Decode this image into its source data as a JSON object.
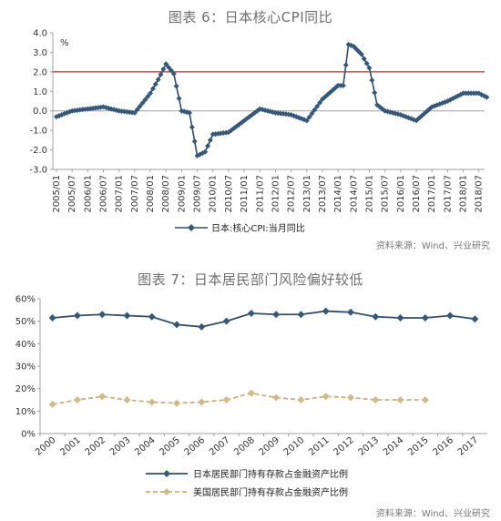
{
  "chart1": {
    "title": "图表 6：日本核心CPI同比",
    "unit": "%",
    "source": "资料来源：Wind、兴业研究",
    "chart_data": {
      "type": "line",
      "title": "图表 6：日本核心CPI同比",
      "ylabel": "%",
      "ylim": [
        -3.0,
        4.0
      ],
      "yticks": [
        "4.0",
        "3.0",
        "2.0",
        "1.0",
        "0.0",
        "-1.0",
        "-2.0",
        "-3.0"
      ],
      "xticks": [
        "2005/01",
        "2005/07",
        "2006/01",
        "2006/07",
        "2007/01",
        "2007/07",
        "2008/01",
        "2008/07",
        "2009/01",
        "2009/07",
        "2010/01",
        "2010/07",
        "2011/01",
        "2011/07",
        "2012/01",
        "2012/07",
        "2013/01",
        "2013/07",
        "2014/01",
        "2014/07",
        "2015/01",
        "2015/07",
        "2016/01",
        "2016/07",
        "2017/01",
        "2017/07",
        "2018/01",
        "2018/07"
      ],
      "reference_line": 2.0,
      "legend_position": "bottom",
      "series": [
        {
          "name": "日本:核心CPI:当月同比",
          "x": [
            "2005/01",
            "2005/07",
            "2006/01",
            "2006/07",
            "2007/01",
            "2007/07",
            "2008/01",
            "2008/04",
            "2008/07",
            "2008/10",
            "2009/01",
            "2009/04",
            "2009/07",
            "2009/10",
            "2010/01",
            "2010/07",
            "2011/01",
            "2011/07",
            "2012/01",
            "2012/07",
            "2013/01",
            "2013/07",
            "2014/01",
            "2014/03",
            "2014/05",
            "2014/07",
            "2014/10",
            "2015/01",
            "2015/04",
            "2015/07",
            "2016/01",
            "2016/07",
            "2017/01",
            "2017/07",
            "2018/01",
            "2018/07",
            "2018/10"
          ],
          "values": [
            -0.3,
            0.0,
            0.1,
            0.2,
            0.0,
            -0.1,
            0.9,
            1.6,
            2.4,
            1.9,
            0.0,
            -0.1,
            -2.3,
            -2.1,
            -1.2,
            -1.1,
            -0.5,
            0.1,
            -0.1,
            -0.2,
            -0.5,
            0.6,
            1.3,
            1.3,
            3.4,
            3.3,
            2.9,
            2.2,
            0.3,
            0.0,
            -0.2,
            -0.5,
            0.2,
            0.5,
            0.9,
            0.9,
            0.7
          ]
        }
      ]
    }
  },
  "chart2": {
    "title": "图表 7：日本居民部门风险偏好较低",
    "source": "资料来源：Wind、兴业研究",
    "chart_data": {
      "type": "line",
      "title": "图表 7：日本居民部门风险偏好较低",
      "ylim": [
        0,
        60
      ],
      "yticks": [
        "60%",
        "50%",
        "40%",
        "30%",
        "20%",
        "10%",
        "0%"
      ],
      "categories": [
        "2000",
        "2001",
        "2002",
        "2003",
        "2004",
        "2005",
        "2006",
        "2007",
        "2008",
        "2009",
        "2010",
        "2011",
        "2012",
        "2013",
        "2014",
        "2015",
        "2016",
        "2017"
      ],
      "legend_position": "bottom",
      "series": [
        {
          "name": "日本居民部门持有存款占金融资产比例",
          "values": [
            51.5,
            52.5,
            53.0,
            52.5,
            52.0,
            48.5,
            47.5,
            50.0,
            53.5,
            53.0,
            53.0,
            54.5,
            54.0,
            52.0,
            51.5,
            51.5,
            52.5,
            51.0
          ]
        },
        {
          "name": "美国居民部门持有存款占金融资产比例",
          "values": [
            13.0,
            15.0,
            16.5,
            15.0,
            14.0,
            13.5,
            14.0,
            15.0,
            18.0,
            16.0,
            15.0,
            16.5,
            16.0,
            15.0,
            15.0,
            15.0,
            null,
            null
          ]
        }
      ]
    }
  },
  "colors": {
    "line_dark": "#2f4d6b",
    "marker_dark": "#35577a",
    "line_tan": "#c9b07c",
    "marker_tan": "#d1b98a",
    "ref_line": "#a43a3a",
    "axis": "#a0a0a0"
  }
}
